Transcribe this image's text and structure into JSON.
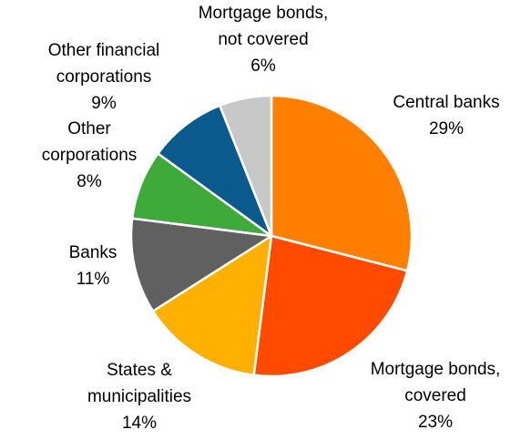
{
  "chart_data": {
    "type": "pie",
    "slices": [
      {
        "label_lines": [
          "Central banks"
        ],
        "value": 29,
        "value_label": "29%",
        "color": "#FF8000"
      },
      {
        "label_lines": [
          "Mortgage bonds,",
          "covered"
        ],
        "value": 23,
        "value_label": "23%",
        "color": "#FF4A00"
      },
      {
        "label_lines": [
          "States &",
          "municipalities"
        ],
        "value": 14,
        "value_label": "14%",
        "color": "#FFB000"
      },
      {
        "label_lines": [
          "Banks"
        ],
        "value": 11,
        "value_label": "11%",
        "color": "#606060"
      },
      {
        "label_lines": [
          "Other",
          "corporations"
        ],
        "value": 8,
        "value_label": "8%",
        "color": "#3DAA3A"
      },
      {
        "label_lines": [
          "Other financial",
          "corporations"
        ],
        "value": 9,
        "value_label": "9%",
        "color": "#0B5A8E"
      },
      {
        "label_lines": [
          "Mortgage bonds,",
          "not covered"
        ],
        "value": 6,
        "value_label": "6%",
        "color": "#C8C8C8"
      }
    ],
    "start_angle_deg": 0,
    "direction": "clockwise",
    "legend": "none",
    "slice_border_color": "#FFFFFF"
  }
}
